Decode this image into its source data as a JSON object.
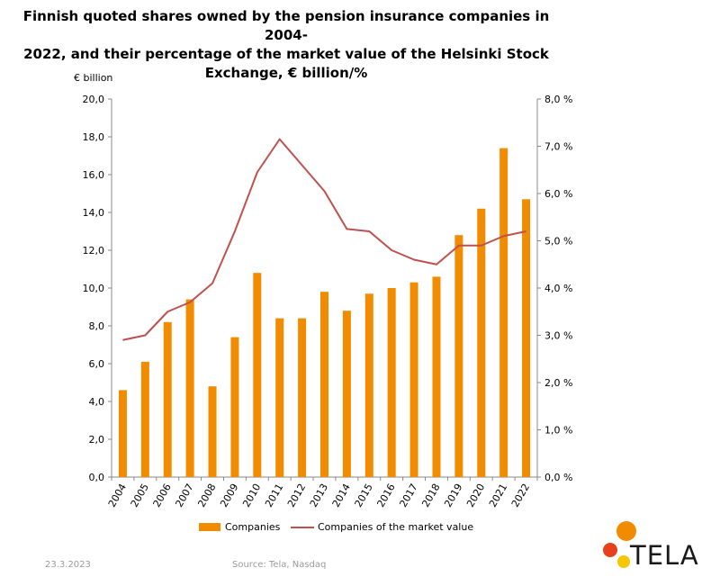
{
  "title_lines": [
    "Finnish quoted shares owned by the pension insurance companies in 2004-",
    "2022, and their percentage of the market value of the Helsinki Stock",
    "Exchange, € billion/%"
  ],
  "colors": {
    "bar": "#f18c00",
    "line": "#c0504d",
    "axis": "#888888",
    "footer": "#9a9a9a",
    "logo_orange": "#f18c00",
    "logo_red": "#e8401c",
    "logo_yellow": "#f7c600"
  },
  "footer": {
    "date": "23.3.2023",
    "source": "Source: Tela, Nasdaq"
  },
  "logo": {
    "text": "TELA"
  },
  "chart_data": {
    "type": "bar",
    "title": "Finnish quoted shares owned by the pension insurance companies in 2004-2022, and their percentage of the market value of the Helsinki Stock Exchange, € billion/%",
    "ylabel": "€ billion",
    "categories": [
      "2004",
      "2005",
      "2006",
      "2007",
      "2008",
      "2009",
      "2010",
      "2011",
      "2012",
      "2013",
      "2014",
      "2015",
      "2016",
      "2017",
      "2018",
      "2019",
      "2020",
      "2021",
      "2022"
    ],
    "ylim": [
      0,
      20
    ],
    "y2lim": [
      0,
      8
    ],
    "y_ticks": [
      "0,0",
      "2,0",
      "4,0",
      "6,0",
      "8,0",
      "10,0",
      "12,0",
      "14,0",
      "16,0",
      "18,0",
      "20,0"
    ],
    "y2_ticks": [
      "0,0 %",
      "1,0 %",
      "2,0 %",
      "3,0 %",
      "4,0 %",
      "5,0 %",
      "6,0 %",
      "7,0 %",
      "8,0 %"
    ],
    "series": [
      {
        "name": "Companies",
        "type": "bar",
        "axis": "left",
        "values": [
          4.6,
          6.1,
          8.2,
          9.4,
          4.8,
          7.4,
          10.8,
          8.4,
          8.4,
          9.8,
          8.8,
          9.7,
          10.0,
          10.3,
          10.6,
          12.8,
          14.2,
          17.4,
          14.7
        ]
      },
      {
        "name": "Companies of the market value",
        "type": "line",
        "axis": "right",
        "values": [
          2.9,
          3.0,
          3.5,
          3.7,
          4.1,
          5.2,
          6.45,
          7.15,
          6.6,
          6.05,
          5.25,
          5.2,
          4.8,
          4.6,
          4.5,
          4.9,
          4.9,
          5.1,
          5.2
        ]
      }
    ],
    "legend_position": "bottom",
    "grid": false
  }
}
